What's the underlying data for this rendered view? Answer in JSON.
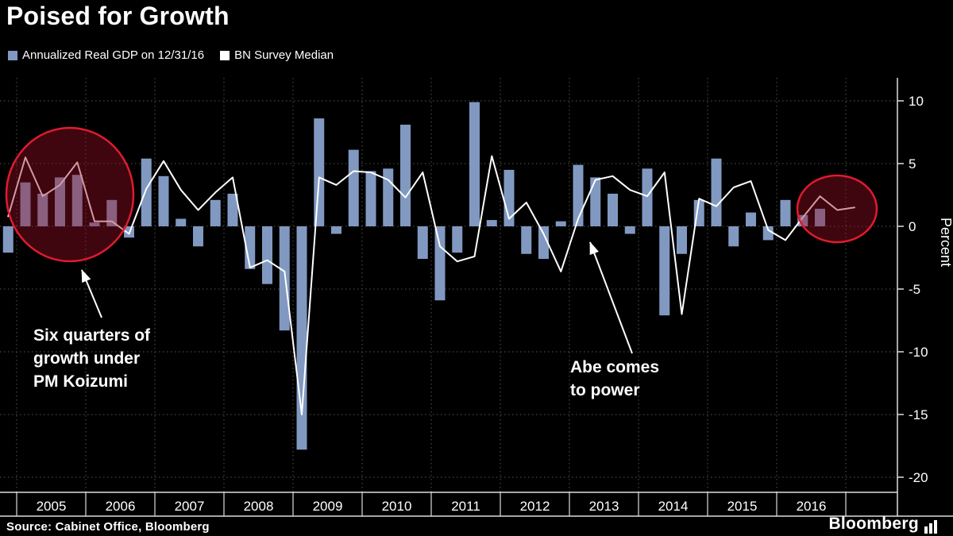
{
  "title": "Poised for Growth",
  "legend": [
    {
      "label": "Annualized Real GDP on 12/31/16",
      "color": "#8199c1"
    },
    {
      "label": "BN Survey Median",
      "color": "#ffffff"
    }
  ],
  "ylabel": "Percent",
  "source": "Source: Cabinet Office, Bloomberg",
  "logo_text": "Bloomberg",
  "annotations": {
    "koizumi": {
      "lines": [
        "Six quarters of",
        "growth under",
        "PM Koizumi"
      ]
    },
    "abe": {
      "lines": [
        "Abe comes",
        "to power"
      ]
    }
  },
  "colors": {
    "background": "#000000",
    "bar": "#8199c1",
    "line": "#ffffff",
    "grid": "#555555",
    "axis": "#dddddd",
    "highlight_ring": "#e01b2f",
    "highlight_fill": "rgba(150,15,35,0.42)"
  },
  "chart_data": {
    "type": "bar+line",
    "title": "Poised for Growth",
    "xlabel": "",
    "ylabel": "Percent",
    "ylim": [
      -20,
      12
    ],
    "yticks": [
      10,
      5,
      0,
      -5,
      -10,
      -15,
      -20
    ],
    "grid": "dotted",
    "legend_position": "top-left",
    "x_years": [
      2005,
      2006,
      2007,
      2008,
      2009,
      2010,
      2011,
      2012,
      2013,
      2014,
      2015,
      2016
    ],
    "quarters": [
      "2004 Q4",
      "2005 Q1",
      "2005 Q2",
      "2005 Q3",
      "2005 Q4",
      "2006 Q1",
      "2006 Q2",
      "2006 Q3",
      "2006 Q4",
      "2007 Q1",
      "2007 Q2",
      "2007 Q3",
      "2007 Q4",
      "2008 Q1",
      "2008 Q2",
      "2008 Q3",
      "2008 Q4",
      "2009 Q1",
      "2009 Q2",
      "2009 Q3",
      "2009 Q4",
      "2010 Q1",
      "2010 Q2",
      "2010 Q3",
      "2010 Q4",
      "2011 Q1",
      "2011 Q2",
      "2011 Q3",
      "2011 Q4",
      "2012 Q1",
      "2012 Q2",
      "2012 Q3",
      "2012 Q4",
      "2013 Q1",
      "2013 Q2",
      "2013 Q3",
      "2013 Q4",
      "2014 Q1",
      "2014 Q2",
      "2014 Q3",
      "2014 Q4",
      "2015 Q1",
      "2015 Q2",
      "2015 Q3",
      "2015 Q4",
      "2016 Q1",
      "2016 Q2",
      "2016 Q3",
      "2016 Q4",
      "2017 Q1"
    ],
    "series": [
      {
        "name": "Annualized Real GDP on 12/31/16",
        "type": "bar",
        "color": "#8199c1",
        "values": [
          -2.1,
          3.5,
          2.6,
          3.9,
          4.1,
          0.3,
          2.1,
          -0.9,
          5.4,
          4.0,
          0.6,
          -1.6,
          2.1,
          2.6,
          -3.4,
          -4.6,
          -8.3,
          -17.8,
          8.6,
          -0.6,
          6.1,
          4.4,
          4.6,
          8.1,
          -2.6,
          -5.9,
          -2.1,
          9.9,
          0.5,
          4.5,
          -2.2,
          -2.6,
          0.4,
          4.9,
          3.9,
          2.6,
          -0.6,
          4.6,
          -7.1,
          -2.2,
          2.1,
          5.4,
          -1.6,
          1.1,
          -1.1,
          2.1,
          0.9,
          1.4
        ]
      },
      {
        "name": "BN Survey Median",
        "type": "line",
        "color": "#ffffff",
        "values": [
          0.8,
          5.5,
          2.4,
          3.3,
          5.1,
          0.4,
          0.4,
          -0.6,
          3.0,
          5.2,
          2.9,
          1.3,
          2.7,
          3.9,
          -3.3,
          -2.7,
          -3.6,
          -15.0,
          3.9,
          3.3,
          4.4,
          4.3,
          3.7,
          2.3,
          4.3,
          -1.6,
          -2.8,
          -2.4,
          5.6,
          0.6,
          1.9,
          -0.6,
          -3.6,
          0.6,
          3.7,
          4.0,
          2.9,
          2.4,
          4.3,
          -7.0,
          2.2,
          1.6,
          3.1,
          3.6,
          -0.3,
          -1.1,
          0.7,
          2.4,
          1.3,
          1.5
        ]
      }
    ]
  }
}
